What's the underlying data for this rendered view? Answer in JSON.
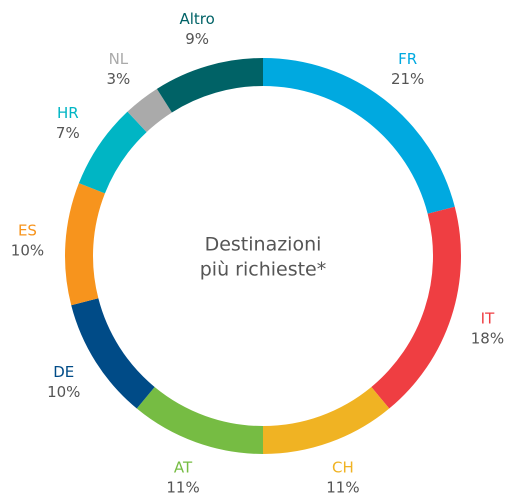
{
  "chart_data": {
    "type": "donut",
    "title": [
      "Destinazioni",
      "più richieste*"
    ],
    "categories": [
      "FR",
      "IT",
      "CH",
      "AT",
      "DE",
      "ES",
      "HR",
      "NL",
      "Altro"
    ],
    "values": [
      21,
      18,
      11,
      11,
      10,
      10,
      7,
      3,
      9
    ],
    "value_labels": [
      "21%",
      "18%",
      "11%",
      "11%",
      "10%",
      "10%",
      "7%",
      "3%",
      "9%"
    ],
    "colors": [
      "#00a9e0",
      "#ef3e42",
      "#f0b323",
      "#76bc43",
      "#004b87",
      "#f7941d",
      "#00b5c4",
      "#aaaaaa",
      "#006266"
    ]
  }
}
